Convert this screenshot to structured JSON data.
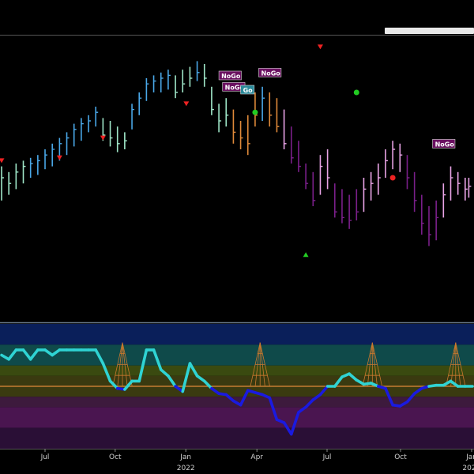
{
  "colors": {
    "background": "#000000",
    "strong_go": "#4aa8e8",
    "go": "#9fe6c8",
    "go_fading": "#e08a3a",
    "nogo": "#e9a3e6",
    "strong_nogo": "#7a1f8a",
    "oscillator_positive": "#2fd3d3",
    "oscillator_negative": "#1a1ae0",
    "zero_line": "#e08a3a",
    "volume_wedge": "#c8782e",
    "bullish_marker": "#22cc22",
    "bearish_marker": "#ee2222"
  },
  "panels": {
    "upper": {
      "name": "price-panel",
      "y_range": [
        0,
        100
      ]
    },
    "lower": {
      "name": "oscillator-panel",
      "y_range": [
        -6,
        6
      ],
      "bands": [
        {
          "from": 4,
          "to": 6,
          "color": "#0a1f5a"
        },
        {
          "from": 2,
          "to": 4,
          "color": "#0f4a4a"
        },
        {
          "from": 1,
          "to": 2,
          "color": "#3a4a10"
        },
        {
          "from": -1,
          "to": 1,
          "color": "#3a3a10"
        },
        {
          "from": -2,
          "to": -1,
          "color": "#3d1a3d"
        },
        {
          "from": -4,
          "to": -2,
          "color": "#4a1550"
        },
        {
          "from": -6,
          "to": -4,
          "color": "#2a0f36"
        }
      ]
    }
  },
  "chart_data": [
    {
      "type": "ohlc",
      "title": "",
      "xlabel": "",
      "ylabel": "",
      "ylim": [
        0,
        100
      ],
      "x_range": [
        0,
        130
      ],
      "bars": [
        {
          "x": 0,
          "h": 54,
          "l": 42,
          "c": 50,
          "s": "go"
        },
        {
          "x": 2,
          "h": 52,
          "l": 44,
          "c": 48,
          "s": "go"
        },
        {
          "x": 4,
          "h": 55,
          "l": 46,
          "c": 52,
          "s": "go"
        },
        {
          "x": 6,
          "h": 56,
          "l": 48,
          "c": 54,
          "s": "go"
        },
        {
          "x": 8,
          "h": 57,
          "l": 50,
          "c": 55,
          "s": "strong_go"
        },
        {
          "x": 10,
          "h": 58,
          "l": 51,
          "c": 56,
          "s": "strong_go"
        },
        {
          "x": 12,
          "h": 60,
          "l": 53,
          "c": 58,
          "s": "strong_go"
        },
        {
          "x": 14,
          "h": 62,
          "l": 54,
          "c": 60,
          "s": "strong_go"
        },
        {
          "x": 16,
          "h": 64,
          "l": 56,
          "c": 62,
          "s": "strong_go"
        },
        {
          "x": 18,
          "h": 66,
          "l": 58,
          "c": 64,
          "s": "strong_go"
        },
        {
          "x": 20,
          "h": 69,
          "l": 61,
          "c": 67,
          "s": "strong_go"
        },
        {
          "x": 22,
          "h": 71,
          "l": 63,
          "c": 69,
          "s": "strong_go"
        },
        {
          "x": 24,
          "h": 72,
          "l": 66,
          "c": 70,
          "s": "strong_go"
        },
        {
          "x": 26,
          "h": 75,
          "l": 68,
          "c": 73,
          "s": "strong_go"
        },
        {
          "x": 28,
          "h": 71,
          "l": 63,
          "c": 65,
          "s": "go"
        },
        {
          "x": 30,
          "h": 70,
          "l": 61,
          "c": 64,
          "s": "go"
        },
        {
          "x": 32,
          "h": 68,
          "l": 59,
          "c": 62,
          "s": "go"
        },
        {
          "x": 34,
          "h": 66,
          "l": 60,
          "c": 63,
          "s": "go"
        },
        {
          "x": 36,
          "h": 76,
          "l": 67,
          "c": 74,
          "s": "strong_go"
        },
        {
          "x": 38,
          "h": 80,
          "l": 72,
          "c": 78,
          "s": "strong_go"
        },
        {
          "x": 40,
          "h": 85,
          "l": 77,
          "c": 83,
          "s": "strong_go"
        },
        {
          "x": 42,
          "h": 86,
          "l": 80,
          "c": 84,
          "s": "strong_go"
        },
        {
          "x": 44,
          "h": 87,
          "l": 80,
          "c": 85,
          "s": "strong_go"
        },
        {
          "x": 46,
          "h": 88,
          "l": 81,
          "c": 86,
          "s": "strong_go"
        },
        {
          "x": 48,
          "h": 86,
          "l": 78,
          "c": 80,
          "s": "go"
        },
        {
          "x": 50,
          "h": 88,
          "l": 80,
          "c": 83,
          "s": "go"
        },
        {
          "x": 52,
          "h": 89,
          "l": 82,
          "c": 85,
          "s": "go"
        },
        {
          "x": 54,
          "h": 91,
          "l": 84,
          "c": 87,
          "s": "strong_go"
        },
        {
          "x": 56,
          "h": 90,
          "l": 82,
          "c": 85,
          "s": "go"
        },
        {
          "x": 58,
          "h": 82,
          "l": 72,
          "c": 74,
          "s": "go"
        },
        {
          "x": 60,
          "h": 76,
          "l": 66,
          "c": 70,
          "s": "go"
        },
        {
          "x": 62,
          "h": 78,
          "l": 68,
          "c": 72,
          "s": "go"
        },
        {
          "x": 64,
          "h": 74,
          "l": 62,
          "c": 66,
          "s": "go_fading"
        },
        {
          "x": 66,
          "h": 70,
          "l": 60,
          "c": 64,
          "s": "go_fading"
        },
        {
          "x": 68,
          "h": 72,
          "l": 58,
          "c": 62,
          "s": "go_fading"
        },
        {
          "x": 70,
          "h": 80,
          "l": 68,
          "c": 72,
          "s": "go_fading"
        },
        {
          "x": 72,
          "h": 82,
          "l": 70,
          "c": 78,
          "s": "strong_go"
        },
        {
          "x": 74,
          "h": 80,
          "l": 68,
          "c": 72,
          "s": "go_fading"
        },
        {
          "x": 76,
          "h": 78,
          "l": 66,
          "c": 68,
          "s": "go_fading"
        },
        {
          "x": 78,
          "h": 74,
          "l": 60,
          "c": 62,
          "s": "nogo"
        },
        {
          "x": 80,
          "h": 68,
          "l": 55,
          "c": 57,
          "s": "strong_nogo"
        },
        {
          "x": 82,
          "h": 63,
          "l": 52,
          "c": 54,
          "s": "strong_nogo"
        },
        {
          "x": 84,
          "h": 55,
          "l": 46,
          "c": 48,
          "s": "strong_nogo"
        },
        {
          "x": 86,
          "h": 52,
          "l": 40,
          "c": 42,
          "s": "strong_nogo"
        },
        {
          "x": 88,
          "h": 58,
          "l": 44,
          "c": 54,
          "s": "nogo"
        },
        {
          "x": 90,
          "h": 60,
          "l": 46,
          "c": 50,
          "s": "nogo"
        },
        {
          "x": 92,
          "h": 48,
          "l": 36,
          "c": 38,
          "s": "strong_nogo"
        },
        {
          "x": 94,
          "h": 46,
          "l": 34,
          "c": 36,
          "s": "strong_nogo"
        },
        {
          "x": 96,
          "h": 44,
          "l": 32,
          "c": 35,
          "s": "strong_nogo"
        },
        {
          "x": 98,
          "h": 46,
          "l": 35,
          "c": 38,
          "s": "strong_nogo"
        },
        {
          "x": 100,
          "h": 50,
          "l": 38,
          "c": 46,
          "s": "nogo"
        },
        {
          "x": 102,
          "h": 52,
          "l": 42,
          "c": 48,
          "s": "nogo"
        },
        {
          "x": 104,
          "h": 55,
          "l": 44,
          "c": 50,
          "s": "nogo"
        },
        {
          "x": 106,
          "h": 60,
          "l": 50,
          "c": 56,
          "s": "nogo"
        },
        {
          "x": 108,
          "h": 63,
          "l": 53,
          "c": 60,
          "s": "nogo"
        },
        {
          "x": 110,
          "h": 62,
          "l": 52,
          "c": 58,
          "s": "nogo"
        },
        {
          "x": 112,
          "h": 58,
          "l": 46,
          "c": 50,
          "s": "strong_nogo"
        },
        {
          "x": 114,
          "h": 52,
          "l": 38,
          "c": 42,
          "s": "strong_nogo"
        },
        {
          "x": 116,
          "h": 44,
          "l": 30,
          "c": 34,
          "s": "strong_nogo"
        },
        {
          "x": 118,
          "h": 40,
          "l": 26,
          "c": 30,
          "s": "strong_nogo"
        },
        {
          "x": 120,
          "h": 42,
          "l": 28,
          "c": 36,
          "s": "strong_nogo"
        },
        {
          "x": 122,
          "h": 48,
          "l": 36,
          "c": 44,
          "s": "nogo"
        },
        {
          "x": 124,
          "h": 54,
          "l": 42,
          "c": 50,
          "s": "nogo"
        },
        {
          "x": 126,
          "h": 52,
          "l": 44,
          "c": 48,
          "s": "nogo"
        },
        {
          "x": 128,
          "h": 50,
          "l": 42,
          "c": 46,
          "s": "nogo"
        },
        {
          "x": 129,
          "h": 50,
          "l": 43,
          "c": 47,
          "s": "nogo"
        }
      ],
      "bear_markers": [
        {
          "x": 0,
          "y": 77
        },
        {
          "x": 15,
          "y": 78
        },
        {
          "x": 27,
          "y": 84
        },
        {
          "x": 49,
          "y": 89
        },
        {
          "x": 86,
          "y": 99
        }
      ],
      "bull_markers_dot": [
        {
          "x": 66,
          "y": 64
        },
        {
          "x": 100,
          "y": 71
        },
        {
          "x": 202,
          "y": 165
        }
      ],
      "labels": [
        {
          "text": "NoGo",
          "x": 60,
          "y": 85,
          "kind": "nogo"
        },
        {
          "text": "NoGo",
          "x": 61,
          "y": 81,
          "kind": "nogo"
        },
        {
          "text": "Go",
          "x": 66,
          "y": 80,
          "kind": "go"
        },
        {
          "text": "NoGo",
          "x": 71,
          "y": 86,
          "kind": "nogo"
        },
        {
          "text": "NoGo",
          "x": 119,
          "y": 61,
          "kind": "nogo"
        }
      ],
      "markers": {
        "bearish_triangles": [
          {
            "x": 0,
            "y": 56
          },
          {
            "x": 16,
            "y": 57
          },
          {
            "x": 28,
            "y": 64
          },
          {
            "x": 51,
            "y": 76
          },
          {
            "x": 88,
            "y": 96
          }
        ],
        "bullish_dots": [
          {
            "x": 70,
            "y": 73
          },
          {
            "x": 98,
            "y": 80
          }
        ],
        "bearish_dots": [
          {
            "x": 216,
            "y": 50
          }
        ],
        "bullish_triangles": [
          {
            "x": 168,
            "y": 23
          }
        ]
      }
    },
    {
      "type": "line",
      "title": "",
      "xlabel": "",
      "ylabel": "",
      "ylim": [
        -6,
        6
      ],
      "x": [
        0,
        2,
        4,
        6,
        8,
        10,
        12,
        14,
        16,
        18,
        20,
        22,
        24,
        26,
        28,
        30,
        32,
        34,
        36,
        38,
        40,
        42,
        44,
        46,
        48,
        50,
        52,
        54,
        56,
        58,
        60,
        62,
        64,
        66,
        68,
        70,
        72,
        74,
        76,
        78,
        80,
        82,
        84,
        86,
        88,
        90,
        92,
        94,
        96,
        98,
        100,
        102,
        104,
        106,
        108,
        110,
        112,
        114,
        116,
        118,
        120,
        122,
        124,
        126,
        128,
        130
      ],
      "series": [
        {
          "values": [
            3,
            2.6,
            3.5,
            3.5,
            2.6,
            3.5,
            3.5,
            3,
            3.5,
            3.5,
            3.5,
            3.5,
            3.5,
            3.5,
            2.2,
            0.5,
            -0.2,
            -0.3,
            0.5,
            0.5,
            3.5,
            3.5,
            1.6,
            1,
            0,
            -0.5,
            2.2,
            1,
            0.5,
            -0.2,
            -0.7,
            -0.8,
            -1.4,
            -1.8,
            -0.4,
            -0.6,
            -0.8,
            -1.1,
            -3.2,
            -3.5,
            -4.6,
            -2.5,
            -2,
            -1.3,
            -0.8,
            0,
            0,
            0.9,
            1.2,
            0.6,
            0.2,
            0.3,
            0,
            -0.2,
            -1.8,
            -1.9,
            -1.5,
            -0.7,
            -0.2,
            0,
            0.1,
            0.1,
            0.5,
            0,
            0,
            0
          ]
        }
      ],
      "volume_wedges_x": [
        32,
        33,
        70,
        71,
        101,
        102,
        124,
        125
      ]
    }
  ],
  "x_axis": {
    "ticks": [
      {
        "label": "Jul",
        "pos": 0.095
      },
      {
        "label": "Oct",
        "pos": 0.243
      },
      {
        "label": "Jan",
        "pos": 0.392
      },
      {
        "label": "Apr",
        "pos": 0.542
      },
      {
        "label": "Jul",
        "pos": 0.69
      },
      {
        "label": "Oct",
        "pos": 0.845
      },
      {
        "label": "Jan",
        "pos": 0.995
      }
    ],
    "year_labels": [
      {
        "label": "2022",
        "pos": 0.392
      },
      {
        "label": "202",
        "pos": 0.99
      }
    ]
  }
}
